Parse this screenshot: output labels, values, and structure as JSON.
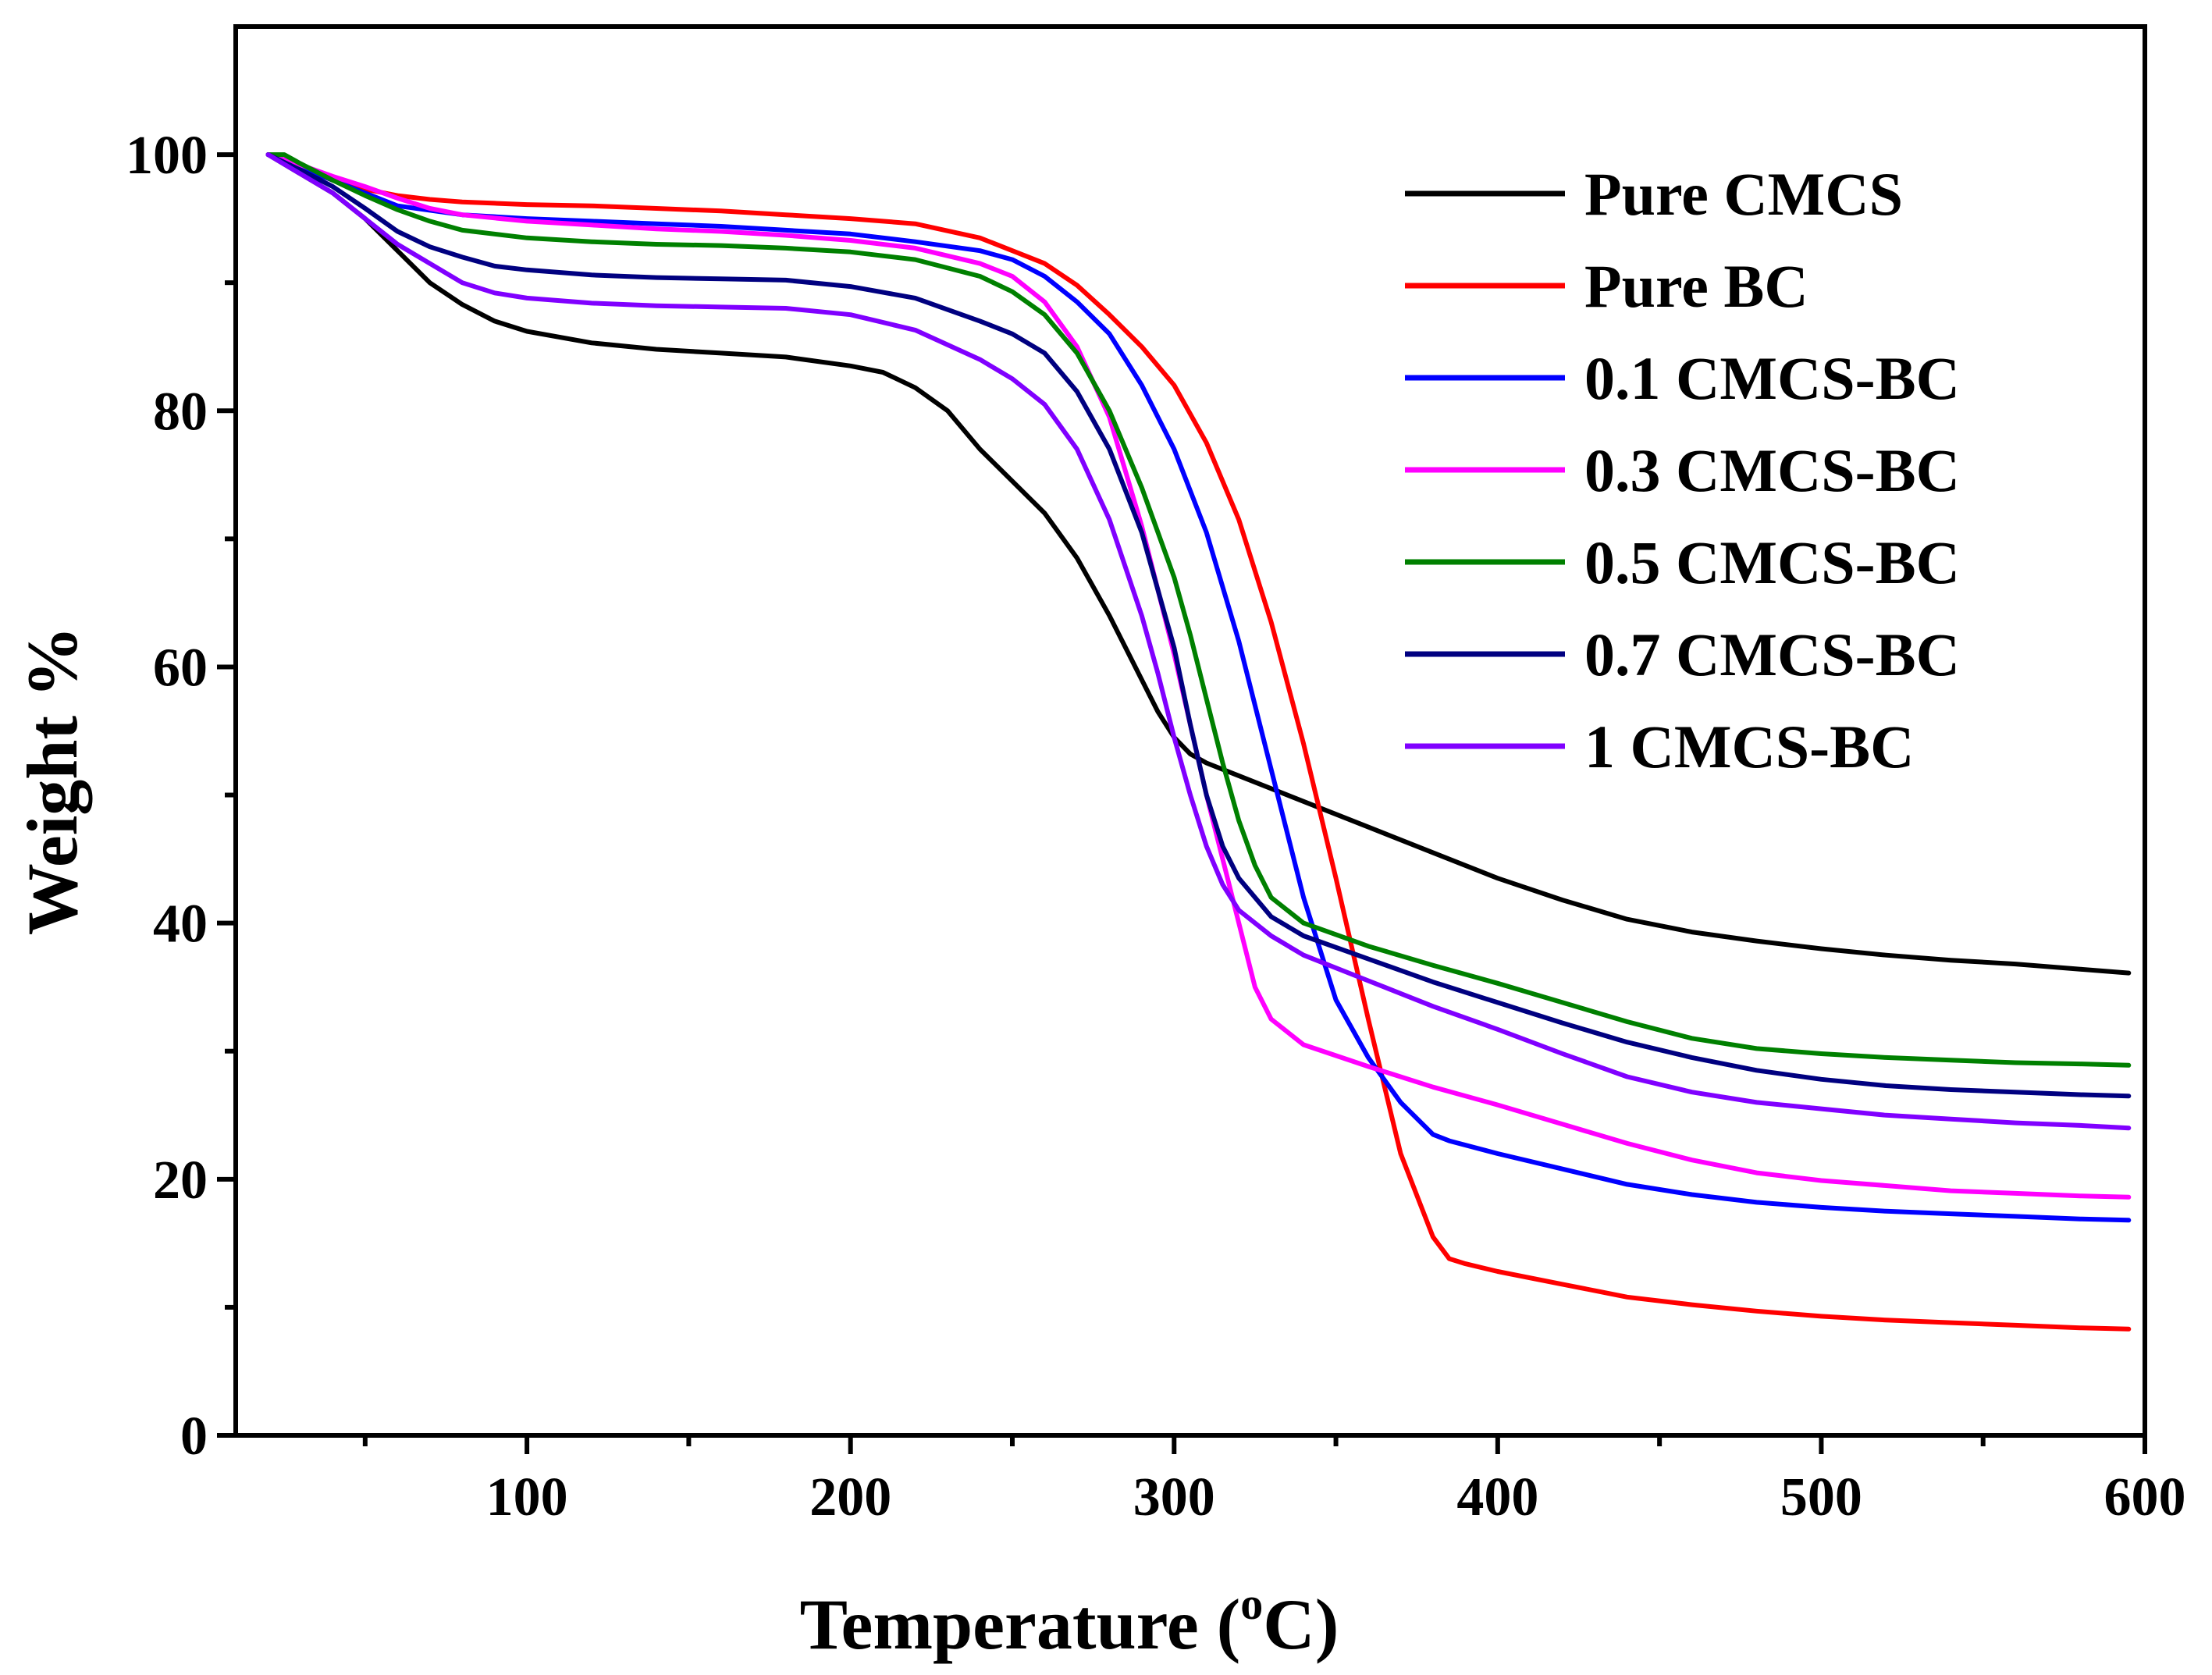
{
  "chart_data": {
    "type": "line",
    "title": "",
    "xlabel": "Temperature (",
    "xlabel_sup": "o",
    "xlabel_end": "C)",
    "ylabel": "Weight %",
    "xlim": [
      10,
      600
    ],
    "ylim": [
      0,
      110
    ],
    "xticks": [
      100,
      200,
      300,
      400,
      500,
      600
    ],
    "yticks": [
      0,
      20,
      40,
      60,
      80,
      100
    ],
    "xtick_labels": [
      "100",
      "200",
      "300",
      "400",
      "500",
      "600"
    ],
    "ytick_labels": [
      "0",
      "20",
      "40",
      "60",
      "80",
      "100"
    ],
    "legend_position": "top-right",
    "series": [
      {
        "name": "Pure CMCS",
        "color": "#000000",
        "x": [
          20,
          30,
          40,
          50,
          60,
          70,
          80,
          90,
          100,
          120,
          140,
          160,
          180,
          200,
          210,
          220,
          230,
          240,
          250,
          260,
          270,
          280,
          290,
          295,
          300,
          305,
          310,
          320,
          340,
          360,
          380,
          400,
          420,
          440,
          460,
          480,
          500,
          520,
          540,
          560,
          580,
          595
        ],
        "y": [
          100,
          98.5,
          97,
          95,
          92.5,
          90,
          88.3,
          87,
          86.2,
          85.3,
          84.8,
          84.5,
          84.2,
          83.5,
          83,
          81.8,
          80,
          77,
          74.5,
          72,
          68.5,
          64,
          59,
          56.5,
          54.5,
          53.2,
          52.5,
          51.5,
          49.5,
          47.5,
          45.5,
          43.5,
          41.8,
          40.3,
          39.3,
          38.6,
          38,
          37.5,
          37.1,
          36.8,
          36.4,
          36.1
        ]
      },
      {
        "name": "Pure BC",
        "color": "#ff0000",
        "x": [
          20,
          30,
          40,
          50,
          60,
          70,
          80,
          90,
          100,
          120,
          140,
          160,
          180,
          200,
          220,
          240,
          260,
          270,
          280,
          290,
          300,
          310,
          320,
          330,
          340,
          350,
          360,
          370,
          380,
          385,
          390,
          400,
          420,
          440,
          460,
          480,
          500,
          520,
          540,
          560,
          580,
          595
        ],
        "y": [
          100,
          99,
          98,
          97.3,
          96.8,
          96.5,
          96.3,
          96.2,
          96.1,
          96,
          95.8,
          95.6,
          95.3,
          95,
          94.6,
          93.5,
          91.5,
          89.8,
          87.5,
          85,
          82,
          77.5,
          71.5,
          63.5,
          54,
          43.5,
          32.5,
          22,
          15.5,
          13.8,
          13.4,
          12.8,
          11.8,
          10.8,
          10.2,
          9.7,
          9.3,
          9,
          8.8,
          8.6,
          8.4,
          8.3
        ]
      },
      {
        "name": "0.1 CMCS-BC",
        "color": "#0000ff",
        "x": [
          20,
          30,
          40,
          50,
          60,
          80,
          100,
          120,
          140,
          160,
          180,
          200,
          220,
          240,
          250,
          260,
          270,
          280,
          290,
          300,
          310,
          320,
          330,
          340,
          350,
          360,
          370,
          380,
          385,
          400,
          420,
          440,
          460,
          480,
          500,
          520,
          540,
          560,
          580,
          595
        ],
        "y": [
          100,
          99,
          98,
          97,
          96,
          95.3,
          95,
          94.8,
          94.6,
          94.4,
          94.1,
          93.8,
          93.2,
          92.5,
          91.8,
          90.5,
          88.5,
          86,
          82,
          77,
          70.5,
          62,
          52,
          42,
          34,
          29.5,
          26,
          23.5,
          23,
          22,
          20.8,
          19.6,
          18.8,
          18.2,
          17.8,
          17.5,
          17.3,
          17.1,
          16.9,
          16.8
        ]
      },
      {
        "name": "0.3 CMCS-BC",
        "color": "#ff00ff",
        "x": [
          20,
          30,
          40,
          50,
          60,
          70,
          80,
          100,
          120,
          140,
          160,
          180,
          200,
          220,
          240,
          250,
          260,
          270,
          280,
          290,
          300,
          305,
          310,
          315,
          320,
          325,
          330,
          340,
          360,
          380,
          400,
          420,
          440,
          460,
          480,
          500,
          520,
          540,
          560,
          580,
          595
        ],
        "y": [
          100,
          99.2,
          98.3,
          97.5,
          96.6,
          95.8,
          95.3,
          94.8,
          94.5,
          94.2,
          94,
          93.7,
          93.3,
          92.7,
          91.5,
          90.5,
          88.5,
          85,
          79.5,
          71,
          61,
          55.5,
          50,
          45,
          40,
          35,
          32.5,
          30.5,
          28.8,
          27.2,
          25.8,
          24.3,
          22.8,
          21.5,
          20.5,
          19.9,
          19.5,
          19.1,
          18.9,
          18.7,
          18.6
        ]
      },
      {
        "name": "0.5 CMCS-BC",
        "color": "#008000",
        "x": [
          20,
          25,
          30,
          40,
          50,
          60,
          70,
          80,
          100,
          120,
          140,
          160,
          180,
          200,
          220,
          240,
          250,
          260,
          270,
          280,
          290,
          300,
          305,
          310,
          315,
          320,
          325,
          330,
          340,
          360,
          380,
          400,
          420,
          440,
          460,
          480,
          500,
          520,
          540,
          560,
          580,
          595
        ],
        "y": [
          100,
          100,
          99.3,
          98,
          96.8,
          95.7,
          94.8,
          94.1,
          93.5,
          93.2,
          93,
          92.9,
          92.7,
          92.4,
          91.8,
          90.5,
          89.3,
          87.5,
          84.5,
          80,
          74,
          67,
          62.5,
          57.5,
          52.5,
          48,
          44.5,
          42,
          40,
          38.2,
          36.7,
          35.3,
          33.8,
          32.3,
          31,
          30.2,
          29.8,
          29.5,
          29.3,
          29.1,
          29,
          28.9
        ]
      },
      {
        "name": "0.7 CMCS-BC",
        "color": "#000080",
        "x": [
          20,
          30,
          40,
          50,
          60,
          70,
          80,
          90,
          100,
          120,
          140,
          160,
          180,
          200,
          220,
          240,
          250,
          260,
          270,
          280,
          290,
          300,
          305,
          310,
          315,
          320,
          330,
          340,
          360,
          380,
          400,
          420,
          440,
          460,
          480,
          500,
          520,
          540,
          560,
          580,
          595
        ],
        "y": [
          100,
          98.8,
          97.5,
          95.8,
          94,
          92.8,
          92,
          91.3,
          91,
          90.6,
          90.4,
          90.3,
          90.2,
          89.7,
          88.8,
          87,
          86,
          84.5,
          81.5,
          77,
          70.5,
          61.5,
          55.5,
          50,
          46,
          43.5,
          40.5,
          39,
          37.2,
          35.4,
          33.8,
          32.2,
          30.7,
          29.5,
          28.5,
          27.8,
          27.3,
          27,
          26.8,
          26.6,
          26.5
        ]
      },
      {
        "name": "1 CMCS-BC",
        "color": "#8000ff",
        "x": [
          20,
          30,
          40,
          50,
          60,
          70,
          80,
          90,
          100,
          120,
          140,
          160,
          180,
          200,
          220,
          240,
          250,
          260,
          270,
          280,
          290,
          295,
          300,
          305,
          310,
          315,
          320,
          330,
          340,
          360,
          380,
          400,
          420,
          440,
          460,
          480,
          500,
          520,
          540,
          560,
          580,
          595
        ],
        "y": [
          100,
          98.5,
          97,
          95,
          93,
          91.5,
          90,
          89.2,
          88.8,
          88.4,
          88.2,
          88.1,
          88,
          87.5,
          86.3,
          84,
          82.5,
          80.5,
          77,
          71.5,
          64,
          59.5,
          54.5,
          50,
          46,
          43,
          41,
          39,
          37.5,
          35.5,
          33.5,
          31.7,
          29.8,
          28,
          26.8,
          26,
          25.5,
          25,
          24.7,
          24.4,
          24.2,
          24
        ]
      }
    ]
  }
}
